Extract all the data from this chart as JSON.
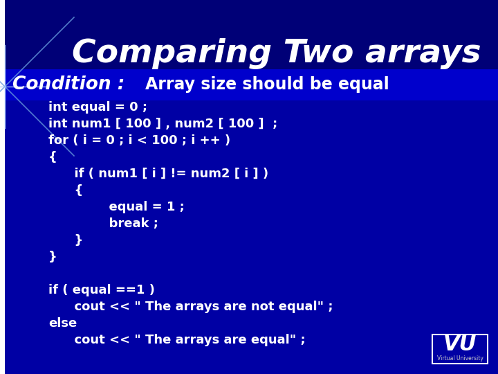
{
  "title": "Comparing Two arrays",
  "condition_label": "Condition :",
  "condition_note": "Array size should be equal",
  "bg_color": "#0000AA",
  "title_color": "#FFFFFF",
  "code_color": "#FFFFFF",
  "title_fontsize": 34,
  "condition_fontsize": 19,
  "code_fontsize": 13,
  "code_lines": [
    "int equal = 0 ;",
    "int num1 [ 100 ] , num2 [ 100 ]  ;",
    "for ( i = 0 ; i < 100 ; i ++ )",
    "{",
    "      if ( num1 [ i ] != num2 [ i ] )",
    "      {",
    "              equal = 1 ;",
    "              break ;",
    "      }",
    "}",
    "",
    "if ( equal ==1 )",
    "      cout << \" The arrays are not equal\" ;",
    "else",
    "      cout << \" The arrays are equal\" ;"
  ],
  "vu_logo_text": "VU",
  "vu_sub_text": "Virtual University"
}
